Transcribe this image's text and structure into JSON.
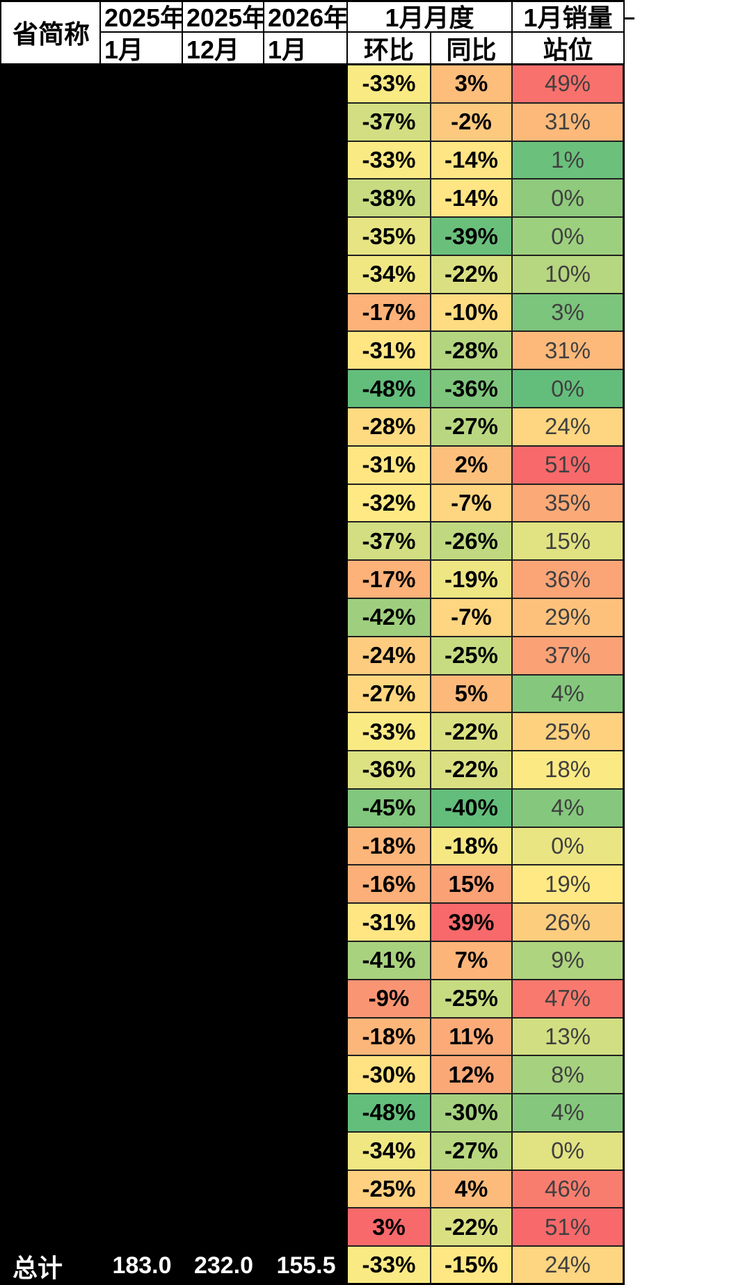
{
  "colors": {
    "header_bg": "#ffffff",
    "grid_line": "#1f1f1f",
    "black_block": "#000000",
    "total_text": "#ffffff",
    "value_text": "#000000",
    "position_text": "#404040",
    "scale_green": "#63be7b",
    "scale_yellow": "#ffeb84",
    "scale_red": "#f8696b"
  },
  "header": {
    "province": "省简称",
    "cols": [
      {
        "top": "2025年",
        "bottom": "1月"
      },
      {
        "top": "2025年",
        "bottom": "12月"
      },
      {
        "top": "2026年",
        "bottom": "1月"
      }
    ],
    "mom_yoy": {
      "top": "1月月度",
      "mom": "环比",
      "yoy": "同比"
    },
    "position": {
      "top": "1月销量",
      "bottom": "站位"
    }
  },
  "chart_data": {
    "type": "table",
    "columns": [
      "省简称",
      "2025年1月",
      "2025年12月",
      "2026年1月",
      "1月月度环比",
      "1月月度同比",
      "1月销量站位"
    ],
    "rows": [
      {
        "mom": "-33%",
        "yoy": "3%",
        "pos": "49%",
        "mom_color": "#faea84",
        "yoy_color": "#fdbd7b",
        "pos_color": "#f9716d"
      },
      {
        "mom": "-37%",
        "yoy": "-2%",
        "pos": "31%",
        "mom_color": "#d2de81",
        "yoy_color": "#fdc97e",
        "pos_color": "#fcb97a"
      },
      {
        "mom": "-33%",
        "yoy": "-14%",
        "pos": "1%",
        "mom_color": "#faea84",
        "yoy_color": "#ffe583",
        "pos_color": "#6bc07c"
      },
      {
        "mom": "-38%",
        "yoy": "-14%",
        "pos": "0%",
        "mom_color": "#c8db81",
        "yoy_color": "#ffe583",
        "pos_color": "#8fca7d"
      },
      {
        "mom": "-35%",
        "yoy": "-39%",
        "pos": "0%",
        "mom_color": "#e6e483",
        "yoy_color": "#6ac07b",
        "pos_color": "#9dd07e"
      },
      {
        "mom": "-34%",
        "yoy": "-22%",
        "pos": "10%",
        "mom_color": "#f0e783",
        "yoy_color": "#dae082",
        "pos_color": "#b7d680"
      },
      {
        "mom": "-17%",
        "yoy": "-10%",
        "pos": "3%",
        "mom_color": "#fcb279",
        "yoy_color": "#fedc81",
        "pos_color": "#7cc57d"
      },
      {
        "mom": "-31%",
        "yoy": "-28%",
        "pos": "31%",
        "mom_color": "#ffe683",
        "yoy_color": "#b3d580",
        "pos_color": "#fcb97a"
      },
      {
        "mom": "-48%",
        "yoy": "-36%",
        "pos": "0%",
        "mom_color": "#63be7b",
        "yoy_color": "#7ec67d",
        "pos_color": "#63be7b"
      },
      {
        "mom": "-28%",
        "yoy": "-27%",
        "pos": "24%",
        "mom_color": "#fedb81",
        "yoy_color": "#b9d780",
        "pos_color": "#fed580"
      },
      {
        "mom": "-31%",
        "yoy": "2%",
        "pos": "51%",
        "mom_color": "#ffe683",
        "yoy_color": "#fdc07c",
        "pos_color": "#f8696b"
      },
      {
        "mom": "-32%",
        "yoy": "-7%",
        "pos": "35%",
        "mom_color": "#ffe984",
        "yoy_color": "#fed580",
        "pos_color": "#fba977"
      },
      {
        "mom": "-37%",
        "yoy": "-26%",
        "pos": "15%",
        "mom_color": "#d2de81",
        "yoy_color": "#c0d980",
        "pos_color": "#e1e282"
      },
      {
        "mom": "-17%",
        "yoy": "-19%",
        "pos": "36%",
        "mom_color": "#fcb279",
        "yoy_color": "#eee683",
        "pos_color": "#fba577"
      },
      {
        "mom": "-42%",
        "yoy": "-7%",
        "pos": "29%",
        "mom_color": "#9fcf7e",
        "yoy_color": "#fed580",
        "pos_color": "#fdc17c"
      },
      {
        "mom": "-24%",
        "yoy": "-25%",
        "pos": "37%",
        "mom_color": "#fdcc7e",
        "yoy_color": "#c7db81",
        "pos_color": "#fba176"
      },
      {
        "mom": "-27%",
        "yoy": "5%",
        "pos": "4%",
        "mom_color": "#fed780",
        "yoy_color": "#fcb97a",
        "pos_color": "#85c87d"
      },
      {
        "mom": "-33%",
        "yoy": "-22%",
        "pos": "25%",
        "mom_color": "#faea84",
        "yoy_color": "#dae082",
        "pos_color": "#fed17f"
      },
      {
        "mom": "-36%",
        "yoy": "-22%",
        "pos": "18%",
        "mom_color": "#dce182",
        "yoy_color": "#dae082",
        "pos_color": "#fbea84"
      },
      {
        "mom": "-45%",
        "yoy": "-40%",
        "pos": "4%",
        "mom_color": "#81c77d",
        "yoy_color": "#63be7b",
        "pos_color": "#85c87d"
      },
      {
        "mom": "-18%",
        "yoy": "-18%",
        "pos": "0%",
        "mom_color": "#fcb67a",
        "yoy_color": "#f5e883",
        "pos_color": "#eae583"
      },
      {
        "mom": "-16%",
        "yoy": "15%",
        "pos": "19%",
        "mom_color": "#fcaf78",
        "yoy_color": "#fba176",
        "pos_color": "#ffe984"
      },
      {
        "mom": "-31%",
        "yoy": "39%",
        "pos": "26%",
        "mom_color": "#ffe683",
        "yoy_color": "#f8696b",
        "pos_color": "#fdcd7e"
      },
      {
        "mom": "-41%",
        "yoy": "7%",
        "pos": "9%",
        "mom_color": "#a9d27f",
        "yoy_color": "#fcb479",
        "pos_color": "#afd47f"
      },
      {
        "mom": "-9%",
        "yoy": "-25%",
        "pos": "47%",
        "mom_color": "#fa9573",
        "yoy_color": "#c7db81",
        "pos_color": "#f9796e"
      },
      {
        "mom": "-18%",
        "yoy": "11%",
        "pos": "13%",
        "mom_color": "#fcb67a",
        "yoy_color": "#fcab78",
        "pos_color": "#d1de81"
      },
      {
        "mom": "-30%",
        "yoy": "12%",
        "pos": "8%",
        "mom_color": "#ffe282",
        "yoy_color": "#fba877",
        "pos_color": "#a6d17f"
      },
      {
        "mom": "-48%",
        "yoy": "-30%",
        "pos": "4%",
        "mom_color": "#63be7b",
        "yoy_color": "#a5d17f",
        "pos_color": "#85c87d"
      },
      {
        "mom": "-34%",
        "yoy": "-27%",
        "pos": "0%",
        "mom_color": "#f0e783",
        "yoy_color": "#b9d780",
        "pos_color": "#e1e282"
      },
      {
        "mom": "-25%",
        "yoy": "4%",
        "pos": "46%",
        "mom_color": "#fed07f",
        "yoy_color": "#fcbb7b",
        "pos_color": "#f97d6f"
      },
      {
        "mom": "3%",
        "yoy": "-22%",
        "pos": "51%",
        "mom_color": "#f8696b",
        "yoy_color": "#dae082",
        "pos_color": "#f8696b"
      }
    ],
    "total": {
      "label": "总计",
      "m2025_01": "183.0",
      "m2025_12": "232.0",
      "m2026_01": "155.5",
      "mom": "-33%",
      "mom_color": "#faea84",
      "yoy": "-15%",
      "yoy_color": "#ffe783",
      "pos": "24%",
      "pos_color": "#fed580"
    }
  }
}
